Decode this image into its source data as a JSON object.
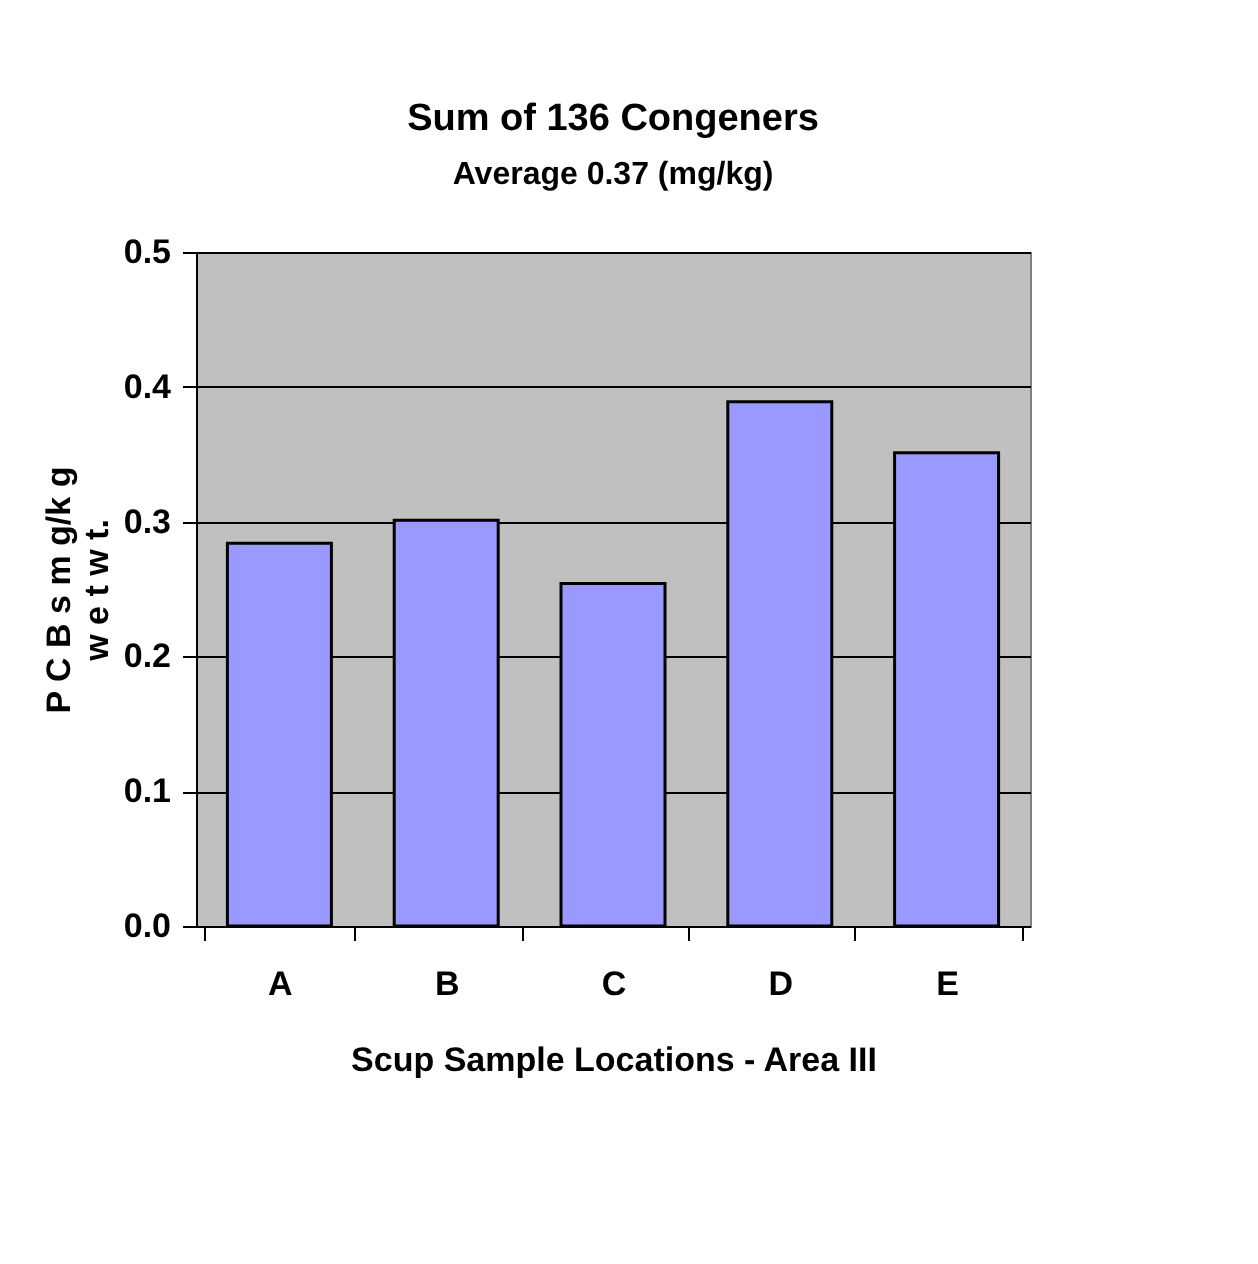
{
  "chart_data": {
    "type": "bar",
    "title": "Sum of 136 Congeners",
    "subtitle": "Average 0.37 (mg/kg)",
    "xlabel": "Scup Sample Locations - Area III",
    "ylabel": "P C B s m g/k g\nw e t w t.",
    "categories": [
      "A",
      "B",
      "C",
      "D",
      "E"
    ],
    "values": [
      0.284,
      0.301,
      0.254,
      0.389,
      0.351
    ],
    "color": "#9999ff",
    "ylim": [
      0,
      0.5
    ],
    "yticks": [
      {
        "value": 0,
        "label": "0.0"
      },
      {
        "value": 0.1,
        "label": "0.1"
      },
      {
        "value": 0.2,
        "label": "0.2"
      },
      {
        "value": 0.3,
        "label": "0.3"
      },
      {
        "value": 0.4,
        "label": "0.4"
      },
      {
        "value": 0.5,
        "label": "0.5"
      }
    ],
    "grid": "y",
    "legend": false
  }
}
